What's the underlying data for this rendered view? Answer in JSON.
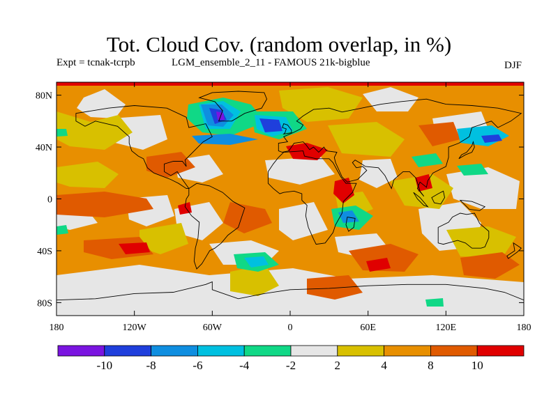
{
  "title": "Tot. Cloud Cov. (random overlap, in %)",
  "experiment": "Expt = tcnak-tcrpb",
  "ensemble": "LGM_ensemble_2_11 - FAMOUS 21k-bigblue",
  "season": "DJF",
  "map": {
    "lat_ticks": [
      "80N",
      "40N",
      "0",
      "40S",
      "80S"
    ],
    "lon_ticks": [
      "180",
      "120W",
      "60W",
      "0",
      "60E",
      "120E",
      "180"
    ],
    "lat_values": [
      80,
      40,
      0,
      -40,
      -80
    ],
    "lon_values": [
      -180,
      -120,
      -60,
      0,
      60,
      120,
      180
    ],
    "lon_range": [
      -180,
      180
    ],
    "lat_range": [
      -90,
      90
    ]
  },
  "colorbar": {
    "colors": [
      "#7a14e0",
      "#1f3fdc",
      "#0f8ee0",
      "#00c0e0",
      "#10d886",
      "#e6e6e6",
      "#d8c000",
      "#e88f00",
      "#e05a00",
      "#e00000"
    ],
    "labels": [
      "-10",
      "-8",
      "-6",
      "-4",
      "-2",
      "2",
      "4",
      "8",
      "10"
    ]
  },
  "colors": {
    "background": "#e6e6e6",
    "coast": "#000000"
  }
}
